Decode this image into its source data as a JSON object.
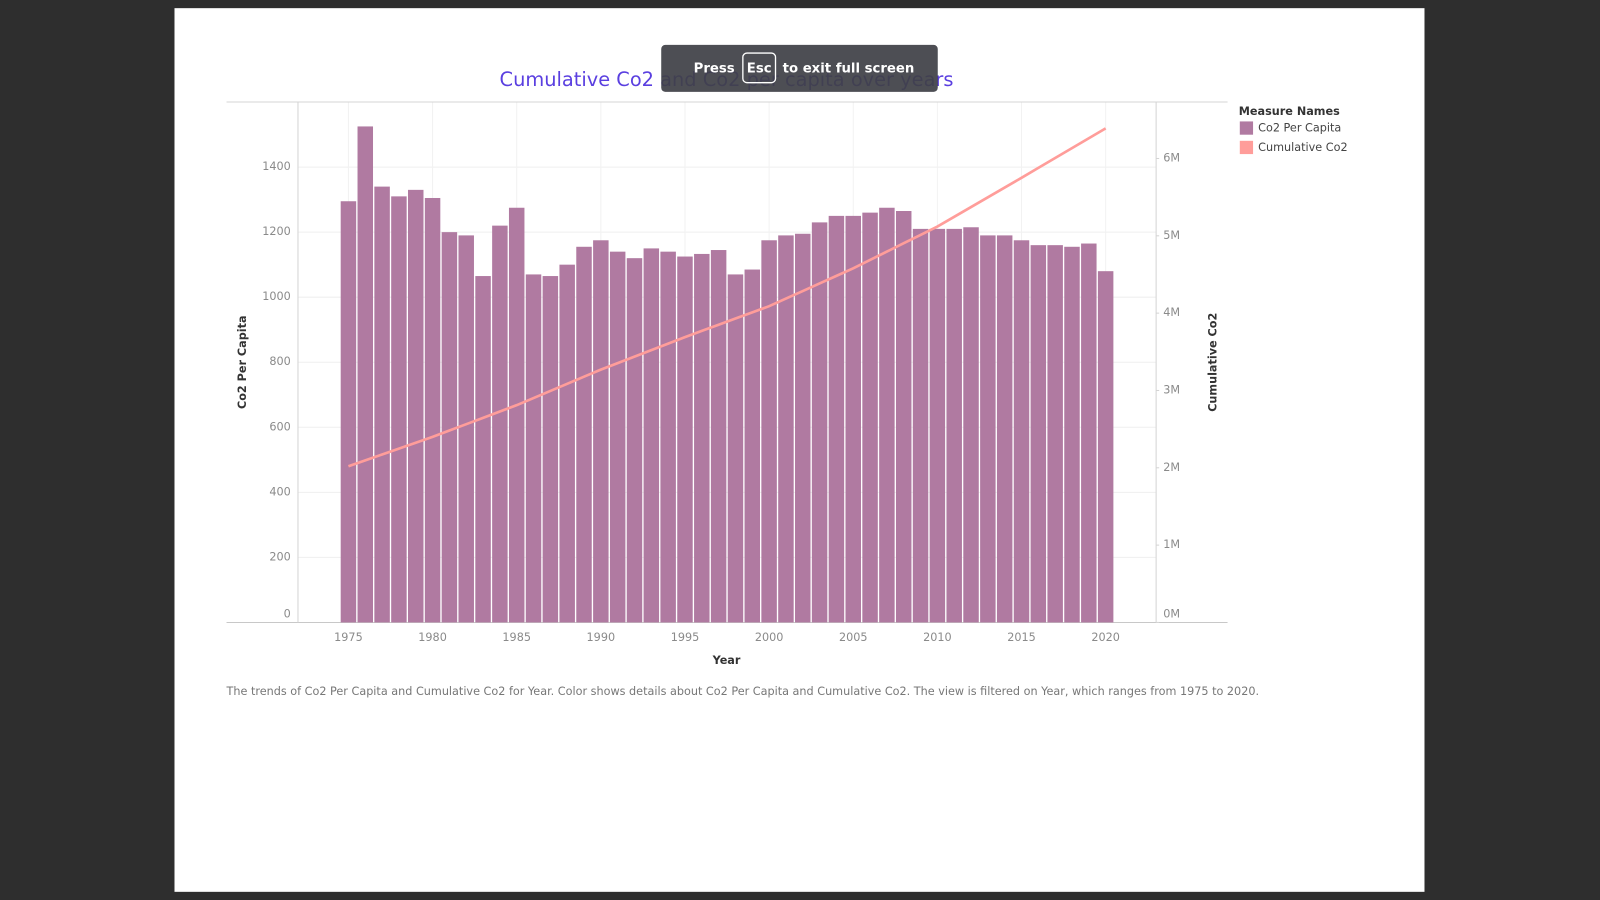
{
  "overlay": {
    "press": "Press",
    "key": "Esc",
    "message": "to exit full screen"
  },
  "chart_data": {
    "type": "bar",
    "title": "Cumulative Co2 and Co2 per capita over years",
    "xlabel": "Year",
    "ylabel": "Co2 Per Capita",
    "y2label": "Cumulative Co2",
    "legend_title": "Measure Names",
    "legend": "right",
    "grid": true,
    "caption": "The trends of Co2 Per Capita and Cumulative Co2 for Year.  Color shows details about Co2 Per Capita and Cumulative Co2. The view is filtered on Year, which ranges from 1975 to 2020.",
    "x": [
      1975,
      1976,
      1977,
      1978,
      1979,
      1980,
      1981,
      1982,
      1983,
      1984,
      1985,
      1986,
      1987,
      1988,
      1989,
      1990,
      1991,
      1992,
      1993,
      1994,
      1995,
      1996,
      1997,
      1998,
      1999,
      2000,
      2001,
      2002,
      2003,
      2004,
      2005,
      2006,
      2007,
      2008,
      2009,
      2010,
      2011,
      2012,
      2013,
      2014,
      2015,
      2016,
      2017,
      2018,
      2019,
      2020
    ],
    "xlim": [
      1972,
      2023
    ],
    "xticks": [
      1975,
      1980,
      1985,
      1990,
      1995,
      2000,
      2005,
      2010,
      2015,
      2020
    ],
    "ylim": [
      0,
      1600
    ],
    "yticks": [
      0,
      200,
      400,
      600,
      800,
      1000,
      1200,
      1400
    ],
    "y2lim": [
      0,
      6730000
    ],
    "y2ticks": [
      {
        "value": 0,
        "label": "0M"
      },
      {
        "value": 1000000,
        "label": "1M"
      },
      {
        "value": 2000000,
        "label": "2M"
      },
      {
        "value": 3000000,
        "label": "3M"
      },
      {
        "value": 4000000,
        "label": "4M"
      },
      {
        "value": 5000000,
        "label": "5M"
      },
      {
        "value": 6000000,
        "label": "6M"
      }
    ],
    "series": [
      {
        "name": "Co2 Per Capita",
        "type": "bar",
        "color": "#b07aa1",
        "values": [
          1295,
          1525,
          1340,
          1310,
          1330,
          1305,
          1200,
          1190,
          1065,
          1220,
          1275,
          1070,
          1065,
          1100,
          1155,
          1175,
          1140,
          1120,
          1150,
          1140,
          1125,
          1133,
          1145,
          1070,
          1085,
          1175,
          1190,
          1195,
          1230,
          1250,
          1250,
          1260,
          1275,
          1265,
          1210,
          1210,
          1210,
          1215,
          1190,
          1190,
          1175,
          1160,
          1160,
          1155,
          1165,
          1080
        ]
      },
      {
        "name": "Cumulative Co2",
        "type": "line",
        "axis": "y2",
        "color": "#ff9d9a",
        "values": [
          2020000,
          2096000,
          2172000,
          2248000,
          2324000,
          2400000,
          2482000,
          2564000,
          2646000,
          2728000,
          2810000,
          2902000,
          2994000,
          3086000,
          3178000,
          3270000,
          3354000,
          3438000,
          3522000,
          3606000,
          3690000,
          3770000,
          3850000,
          3930000,
          4010000,
          4090000,
          4188000,
          4286000,
          4384000,
          4482000,
          4580000,
          4688000,
          4796000,
          4904000,
          5012000,
          5120000,
          5246000,
          5372000,
          5498000,
          5624000,
          5750000,
          5878000,
          6006000,
          6134000,
          6262000,
          6390000
        ]
      }
    ]
  }
}
